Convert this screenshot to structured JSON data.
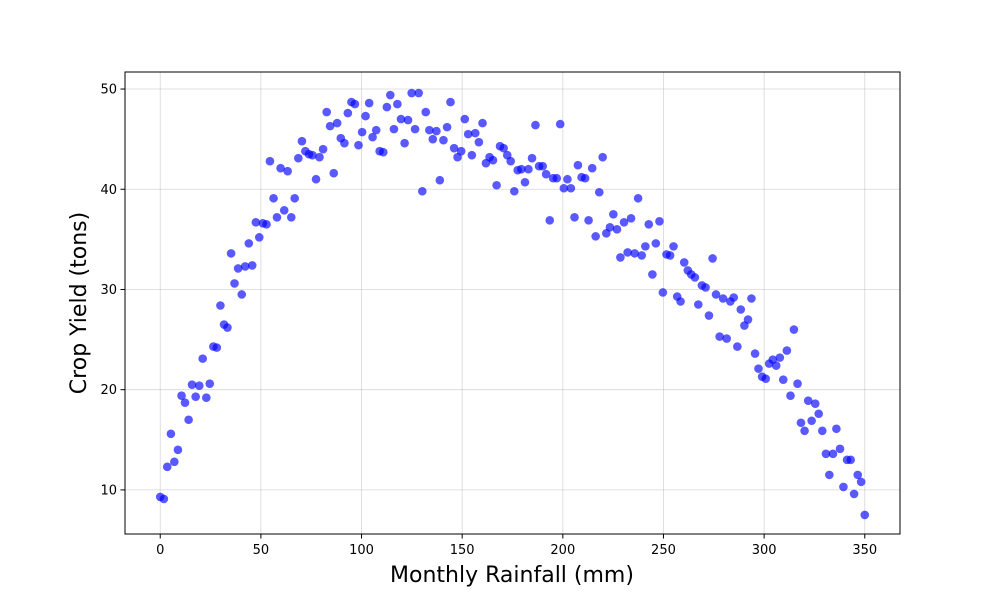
{
  "chart_data": {
    "type": "scatter",
    "title": "",
    "xlabel": "Monthly Rainfall (mm)",
    "ylabel": "Crop Yield (tons)",
    "xlim": [
      -17.5,
      367.5
    ],
    "ylim": [
      5.6,
      51.7
    ],
    "xticks": [
      0,
      50,
      100,
      150,
      200,
      250,
      300,
      350
    ],
    "yticks": [
      10,
      20,
      30,
      40,
      50
    ],
    "grid": true,
    "legend": "none",
    "marker_color": "#0000ff",
    "marker_opacity": 0.65,
    "points": [
      [
        0,
        9.3
      ],
      [
        1.8,
        9.1
      ],
      [
        3.5,
        12.3
      ],
      [
        5.3,
        15.6
      ],
      [
        7.0,
        12.8
      ],
      [
        8.8,
        14.0
      ],
      [
        10.6,
        19.4
      ],
      [
        12.3,
        18.7
      ],
      [
        14.1,
        17.0
      ],
      [
        15.8,
        20.5
      ],
      [
        17.6,
        19.3
      ],
      [
        19.4,
        20.4
      ],
      [
        21.1,
        23.1
      ],
      [
        22.9,
        19.2
      ],
      [
        24.6,
        20.6
      ],
      [
        26.4,
        24.3
      ],
      [
        28.1,
        24.2
      ],
      [
        29.9,
        28.4
      ],
      [
        31.7,
        26.5
      ],
      [
        33.4,
        26.2
      ],
      [
        35.2,
        33.6
      ],
      [
        36.9,
        30.6
      ],
      [
        38.7,
        32.1
      ],
      [
        40.5,
        29.5
      ],
      [
        42.2,
        32.3
      ],
      [
        44.0,
        34.6
      ],
      [
        45.7,
        32.4
      ],
      [
        47.5,
        36.7
      ],
      [
        49.2,
        35.2
      ],
      [
        51.0,
        36.6
      ],
      [
        52.8,
        36.5
      ],
      [
        54.5,
        42.8
      ],
      [
        56.3,
        39.1
      ],
      [
        58.0,
        37.2
      ],
      [
        59.8,
        42.1
      ],
      [
        61.6,
        37.9
      ],
      [
        63.3,
        41.8
      ],
      [
        65.1,
        37.2
      ],
      [
        66.8,
        39.1
      ],
      [
        68.6,
        43.1
      ],
      [
        70.4,
        44.8
      ],
      [
        72.1,
        43.8
      ],
      [
        73.9,
        43.5
      ],
      [
        75.6,
        43.4
      ],
      [
        77.4,
        41.0
      ],
      [
        79.1,
        43.2
      ],
      [
        80.9,
        44.0
      ],
      [
        82.7,
        47.7
      ],
      [
        84.4,
        46.3
      ],
      [
        86.2,
        41.6
      ],
      [
        87.9,
        46.6
      ],
      [
        89.7,
        45.1
      ],
      [
        91.5,
        44.6
      ],
      [
        93.2,
        47.6
      ],
      [
        95.0,
        48.7
      ],
      [
        96.7,
        48.5
      ],
      [
        98.5,
        44.4
      ],
      [
        100.3,
        45.7
      ],
      [
        102.0,
        47.3
      ],
      [
        103.8,
        48.6
      ],
      [
        105.5,
        45.2
      ],
      [
        107.3,
        45.9
      ],
      [
        109.0,
        43.8
      ],
      [
        110.8,
        43.7
      ],
      [
        112.6,
        48.2
      ],
      [
        114.3,
        49.4
      ],
      [
        116.1,
        46.0
      ],
      [
        117.8,
        48.5
      ],
      [
        119.6,
        47.0
      ],
      [
        121.4,
        44.6
      ],
      [
        123.1,
        46.9
      ],
      [
        124.9,
        49.6
      ],
      [
        126.6,
        46.0
      ],
      [
        128.4,
        49.6
      ],
      [
        130.2,
        39.8
      ],
      [
        131.9,
        47.7
      ],
      [
        133.7,
        45.9
      ],
      [
        135.4,
        45.0
      ],
      [
        137.2,
        45.8
      ],
      [
        138.9,
        40.9
      ],
      [
        140.7,
        44.9
      ],
      [
        142.5,
        46.2
      ],
      [
        144.2,
        48.7
      ],
      [
        146.0,
        44.1
      ],
      [
        147.7,
        43.2
      ],
      [
        149.5,
        43.8
      ],
      [
        151.3,
        47.0
      ],
      [
        153.0,
        45.5
      ],
      [
        154.8,
        43.4
      ],
      [
        156.5,
        45.6
      ],
      [
        158.3,
        44.7
      ],
      [
        160.1,
        46.6
      ],
      [
        161.8,
        42.6
      ],
      [
        163.6,
        43.2
      ],
      [
        165.3,
        42.9
      ],
      [
        167.1,
        40.4
      ],
      [
        168.8,
        44.3
      ],
      [
        170.6,
        44.1
      ],
      [
        172.4,
        43.4
      ],
      [
        174.1,
        42.8
      ],
      [
        175.9,
        39.8
      ],
      [
        177.6,
        41.9
      ],
      [
        179.4,
        42.0
      ],
      [
        181.2,
        40.7
      ],
      [
        182.9,
        42.0
      ],
      [
        184.7,
        43.1
      ],
      [
        186.4,
        46.4
      ],
      [
        188.2,
        42.3
      ],
      [
        190.0,
        42.3
      ],
      [
        191.7,
        41.5
      ],
      [
        193.5,
        36.9
      ],
      [
        195.2,
        41.1
      ],
      [
        197.0,
        41.1
      ],
      [
        198.7,
        46.5
      ],
      [
        200.5,
        40.1
      ],
      [
        202.3,
        41.0
      ],
      [
        204.0,
        40.1
      ],
      [
        205.8,
        37.2
      ],
      [
        207.5,
        42.4
      ],
      [
        209.3,
        41.2
      ],
      [
        211.1,
        41.1
      ],
      [
        212.8,
        36.9
      ],
      [
        214.6,
        42.1
      ],
      [
        216.3,
        35.3
      ],
      [
        218.1,
        39.7
      ],
      [
        219.8,
        43.2
      ],
      [
        221.6,
        35.6
      ],
      [
        223.4,
        36.2
      ],
      [
        225.1,
        37.5
      ],
      [
        226.9,
        36.0
      ],
      [
        228.6,
        33.2
      ],
      [
        230.4,
        36.7
      ],
      [
        232.2,
        33.7
      ],
      [
        233.9,
        37.1
      ],
      [
        235.7,
        33.6
      ],
      [
        237.4,
        39.1
      ],
      [
        239.2,
        33.4
      ],
      [
        241.0,
        34.3
      ],
      [
        242.7,
        36.5
      ],
      [
        244.5,
        31.5
      ],
      [
        246.2,
        34.6
      ],
      [
        248.0,
        36.8
      ],
      [
        249.7,
        29.7
      ],
      [
        251.5,
        33.5
      ],
      [
        253.3,
        33.4
      ],
      [
        255.0,
        34.3
      ],
      [
        256.8,
        29.3
      ],
      [
        258.5,
        28.8
      ],
      [
        260.3,
        32.7
      ],
      [
        262.1,
        31.9
      ],
      [
        263.8,
        31.5
      ],
      [
        265.6,
        31.2
      ],
      [
        267.3,
        28.5
      ],
      [
        269.1,
        30.4
      ],
      [
        270.9,
        30.2
      ],
      [
        272.6,
        27.4
      ],
      [
        274.4,
        33.1
      ],
      [
        276.1,
        29.5
      ],
      [
        277.9,
        25.3
      ],
      [
        279.6,
        29.1
      ],
      [
        281.4,
        25.1
      ],
      [
        283.2,
        28.8
      ],
      [
        284.9,
        29.2
      ],
      [
        286.7,
        24.3
      ],
      [
        288.4,
        28.0
      ],
      [
        290.2,
        26.4
      ],
      [
        292.0,
        27.0
      ],
      [
        293.7,
        29.1
      ],
      [
        295.5,
        23.6
      ],
      [
        297.2,
        22.1
      ],
      [
        299.0,
        21.3
      ],
      [
        300.8,
        21.1
      ],
      [
        302.5,
        22.6
      ],
      [
        304.3,
        23.0
      ],
      [
        306.0,
        22.4
      ],
      [
        307.8,
        23.2
      ],
      [
        309.5,
        21.0
      ],
      [
        311.3,
        23.9
      ],
      [
        313.1,
        19.4
      ],
      [
        314.8,
        26.0
      ],
      [
        316.6,
        20.6
      ],
      [
        318.3,
        16.7
      ],
      [
        320.1,
        15.9
      ],
      [
        321.9,
        18.9
      ],
      [
        323.6,
        16.9
      ],
      [
        325.4,
        18.6
      ],
      [
        327.1,
        17.6
      ],
      [
        328.9,
        15.9
      ],
      [
        330.7,
        13.6
      ],
      [
        332.4,
        11.5
      ],
      [
        334.2,
        13.6
      ],
      [
        335.9,
        16.1
      ],
      [
        337.7,
        14.1
      ],
      [
        339.4,
        10.3
      ],
      [
        341.2,
        13.0
      ],
      [
        343.0,
        13.0
      ],
      [
        344.7,
        9.6
      ],
      [
        346.5,
        11.5
      ],
      [
        348.2,
        10.8
      ],
      [
        350.0,
        7.5
      ]
    ]
  }
}
